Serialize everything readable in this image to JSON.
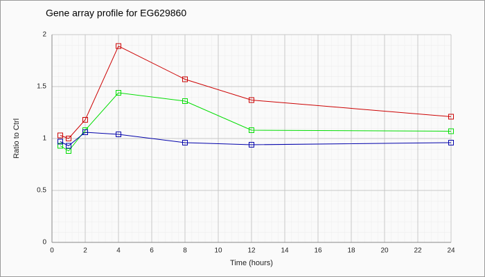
{
  "chart_data": {
    "type": "line",
    "title": "Gene array profile for EG629860",
    "x_label": "Time (hours)",
    "y_label": "Ratio to Ctrl",
    "x": [
      0.5,
      1,
      2,
      4,
      8,
      12,
      24
    ],
    "series": [
      {
        "color": "#cc0000",
        "values": [
          1.03,
          1.0,
          1.18,
          1.89,
          1.57,
          1.37,
          1.21
        ]
      },
      {
        "color": "#00dd00",
        "values": [
          0.93,
          0.88,
          1.08,
          1.44,
          1.36,
          1.08,
          1.07
        ]
      },
      {
        "color": "#0000aa",
        "values": [
          0.97,
          0.93,
          1.06,
          1.04,
          0.96,
          0.94,
          0.96
        ]
      }
    ],
    "xlim": [
      0,
      24
    ],
    "xticks": [
      0,
      2,
      4,
      6,
      8,
      10,
      12,
      14,
      16,
      18,
      20,
      22,
      24
    ],
    "ylim": [
      0,
      2
    ],
    "yticks": [
      0,
      0.5,
      1,
      1.5,
      2
    ],
    "grid": true
  }
}
